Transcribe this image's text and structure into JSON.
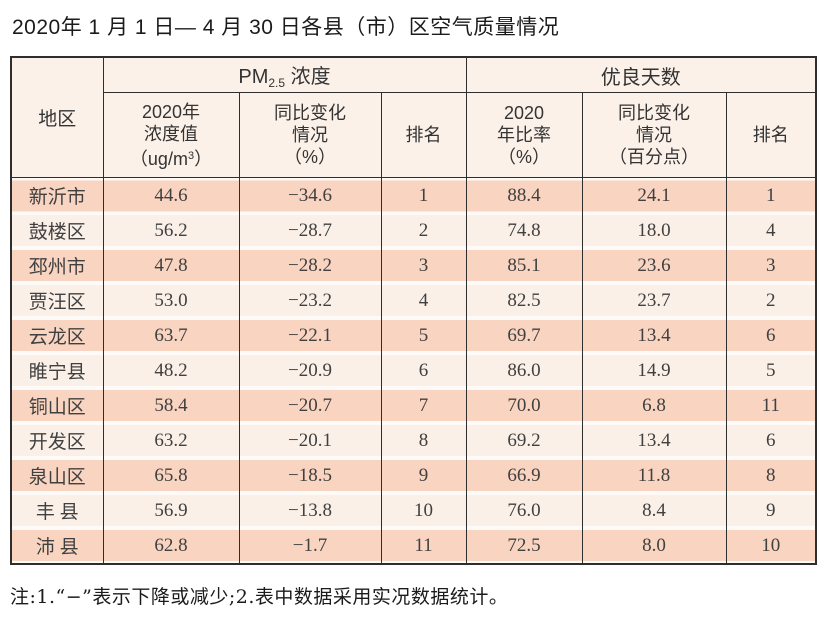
{
  "page": {
    "title": "2020年 1 月 1 日— 4 月 30 日各县（市）区空气质量情况",
    "note": "注:1.“−”表示下降或减少;2.表中数据采用实况数据统计。"
  },
  "colors": {
    "row_salmon": "#f8d4c1",
    "row_cream": "#fbf0e8",
    "header_bg": "#fcf1e9",
    "border": "#2e2e2e",
    "text": "#3c3c3c"
  },
  "table": {
    "header": {
      "region": "地区",
      "pm_group": {
        "prefix": "PM",
        "sub": "2.5",
        "suffix": " 浓度"
      },
      "days_group": "优良天数",
      "pm_value": {
        "l1": "2020年",
        "l2": "浓度值",
        "u_pre": "（ug/m",
        "u_sup": "3",
        "u_post": "）"
      },
      "pm_change": {
        "l1": "同比变化",
        "l2": "情况",
        "l3": "（%）"
      },
      "pm_rank": "排名",
      "days_ratio": {
        "l1": "2020",
        "l2": "年比率",
        "l3": "（%）"
      },
      "days_change": {
        "l1": "同比变化",
        "l2": "情况",
        "l3": "（百分点）"
      },
      "days_rank": "排名"
    },
    "rows": [
      {
        "region": "新沂市",
        "pm_value": "44.6",
        "pm_change": "−34.6",
        "pm_rank": "1",
        "days_ratio": "88.4",
        "days_change": "24.1",
        "days_rank": "1"
      },
      {
        "region": "鼓楼区",
        "pm_value": "56.2",
        "pm_change": "−28.7",
        "pm_rank": "2",
        "days_ratio": "74.8",
        "days_change": "18.0",
        "days_rank": "4"
      },
      {
        "region": "邳州市",
        "pm_value": "47.8",
        "pm_change": "−28.2",
        "pm_rank": "3",
        "days_ratio": "85.1",
        "days_change": "23.6",
        "days_rank": "3"
      },
      {
        "region": "贾汪区",
        "pm_value": "53.0",
        "pm_change": "−23.2",
        "pm_rank": "4",
        "days_ratio": "82.5",
        "days_change": "23.7",
        "days_rank": "2"
      },
      {
        "region": "云龙区",
        "pm_value": "63.7",
        "pm_change": "−22.1",
        "pm_rank": "5",
        "days_ratio": "69.7",
        "days_change": "13.4",
        "days_rank": "6"
      },
      {
        "region": "睢宁县",
        "pm_value": "48.2",
        "pm_change": "−20.9",
        "pm_rank": "6",
        "days_ratio": "86.0",
        "days_change": "14.9",
        "days_rank": "5"
      },
      {
        "region": "铜山区",
        "pm_value": "58.4",
        "pm_change": "−20.7",
        "pm_rank": "7",
        "days_ratio": "70.0",
        "days_change": "6.8",
        "days_rank": "11"
      },
      {
        "region": "开发区",
        "pm_value": "63.2",
        "pm_change": "−20.1",
        "pm_rank": "8",
        "days_ratio": "69.2",
        "days_change": "13.4",
        "days_rank": "6"
      },
      {
        "region": "泉山区",
        "pm_value": "65.8",
        "pm_change": "−18.5",
        "pm_rank": "9",
        "days_ratio": "66.9",
        "days_change": "11.8",
        "days_rank": "8"
      },
      {
        "region": "丰 县",
        "pm_value": "56.9",
        "pm_change": "−13.8",
        "pm_rank": "10",
        "days_ratio": "76.0",
        "days_change": "8.4",
        "days_rank": "9"
      },
      {
        "region": "沛 县",
        "pm_value": "62.8",
        "pm_change": "−1.7",
        "pm_rank": "11",
        "days_ratio": "72.5",
        "days_change": "8.0",
        "days_rank": "10"
      }
    ]
  }
}
